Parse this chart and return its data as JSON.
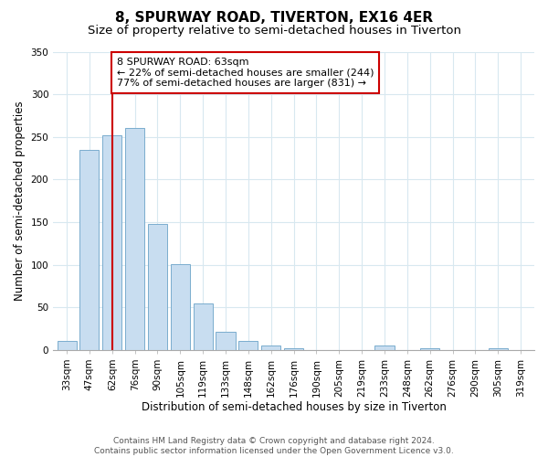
{
  "title": "8, SPURWAY ROAD, TIVERTON, EX16 4ER",
  "subtitle": "Size of property relative to semi-detached houses in Tiverton",
  "xlabel": "Distribution of semi-detached houses by size in Tiverton",
  "ylabel": "Number of semi-detached properties",
  "categories": [
    "33sqm",
    "47sqm",
    "62sqm",
    "76sqm",
    "90sqm",
    "105sqm",
    "119sqm",
    "133sqm",
    "148sqm",
    "162sqm",
    "176sqm",
    "190sqm",
    "205sqm",
    "219sqm",
    "233sqm",
    "248sqm",
    "262sqm",
    "276sqm",
    "290sqm",
    "305sqm",
    "319sqm"
  ],
  "values": [
    10,
    235,
    252,
    260,
    148,
    101,
    55,
    21,
    10,
    5,
    2,
    0,
    0,
    0,
    5,
    0,
    2,
    0,
    0,
    2,
    0
  ],
  "bar_color": "#c8ddf0",
  "bar_edge_color": "#7aadce",
  "vline_x": 2,
  "vline_color": "#cc0000",
  "annotation_text": "8 SPURWAY ROAD: 63sqm\n← 22% of semi-detached houses are smaller (244)\n77% of semi-detached houses are larger (831) →",
  "annotation_box_color": "#ffffff",
  "annotation_box_edgecolor": "#cc0000",
  "ylim": [
    0,
    350
  ],
  "yticks": [
    0,
    50,
    100,
    150,
    200,
    250,
    300,
    350
  ],
  "footer_line1": "Contains HM Land Registry data © Crown copyright and database right 2024.",
  "footer_line2": "Contains public sector information licensed under the Open Government Licence v3.0.",
  "bg_color": "#ffffff",
  "grid_color": "#d8e8f0",
  "title_fontsize": 11,
  "subtitle_fontsize": 9.5,
  "axis_label_fontsize": 8.5,
  "tick_fontsize": 7.5,
  "annotation_fontsize": 8,
  "footer_fontsize": 6.5
}
